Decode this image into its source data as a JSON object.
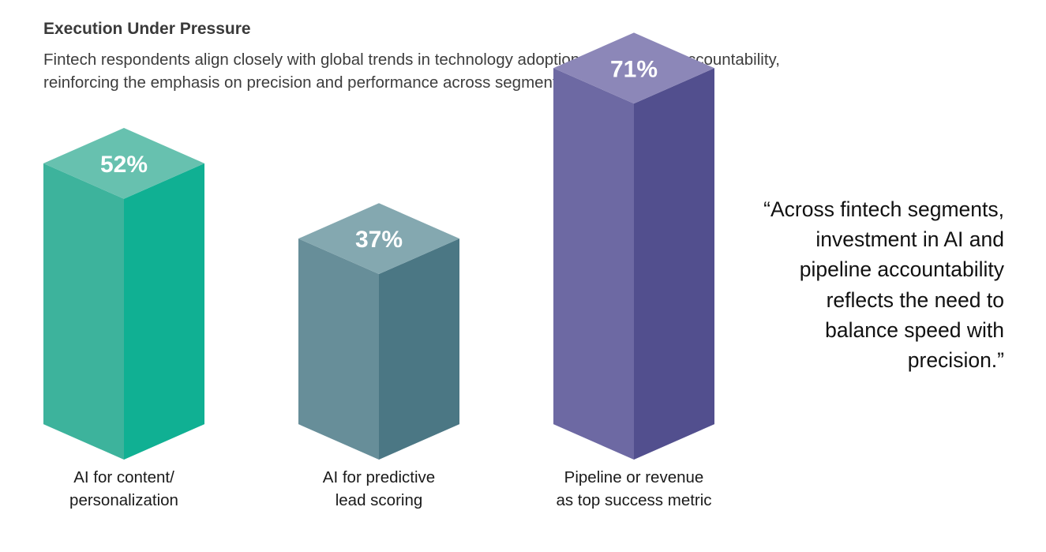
{
  "header": {
    "title": "Execution Under Pressure",
    "subtitle": "Fintech respondents align closely with global trends in technology adoption and revenue accountability, reinforcing the emphasis on precision and performance across segments."
  },
  "chart_data": {
    "type": "bar",
    "style": "3d-isometric",
    "categories": [
      [
        "AI for content/",
        "personalization"
      ],
      [
        "AI for predictive",
        "lead scoring"
      ],
      [
        "Pipeline or revenue",
        "as top success metric"
      ]
    ],
    "values": [
      52,
      37,
      71
    ],
    "value_labels": [
      "52%",
      "37%",
      "71%"
    ],
    "unit": "%",
    "colors": [
      {
        "top": "#67c1af",
        "front": "#3db39c",
        "side": "#10b093"
      },
      {
        "top": "#84a8b0",
        "front": "#678e99",
        "side": "#4b7784"
      },
      {
        "top": "#8c87b8",
        "front": "#6d69a3",
        "side": "#524f8e"
      }
    ],
    "legend": "none",
    "grid": false
  },
  "quote": {
    "text": "“Across fintech segments, investment in AI and pipeline accountability reflects the need to balance speed with precision.”"
  }
}
